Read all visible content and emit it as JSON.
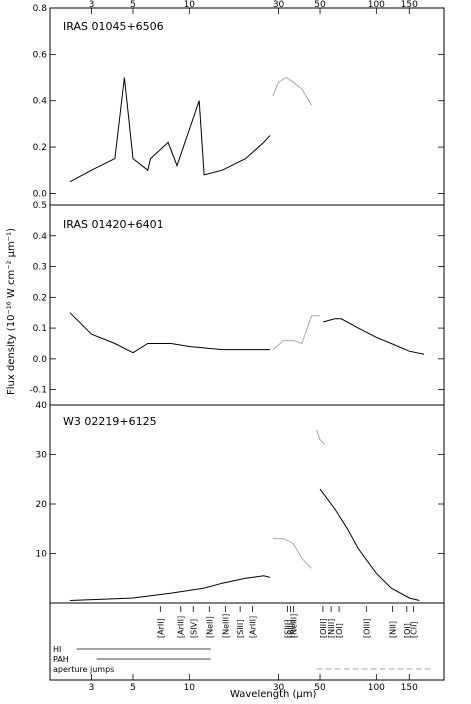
{
  "figure": {
    "xlabel": "Wavelength (μm)",
    "ylabel": "Flux density (10⁻¹⁶ W cm⁻² μm⁻¹)",
    "x_ticks": [
      "3",
      "5",
      "10",
      "30",
      "50",
      "100",
      "150"
    ],
    "x_tick_values": [
      3,
      5,
      10,
      30,
      50,
      100,
      150
    ],
    "xlim": [
      1.8,
      230
    ],
    "x_scale": "log"
  },
  "chart_data": [
    {
      "type": "line",
      "title": "IRAS 01045+6506",
      "ylim": [
        -0.05,
        0.8
      ],
      "y_ticks": [
        0.0,
        0.2,
        0.4,
        0.6,
        0.8
      ],
      "series": [
        {
          "color": "#000000",
          "x": [
            2.3,
            3.0,
            4.0,
            4.5,
            5.0,
            6.0,
            6.2,
            7.7,
            8.6,
            11.3,
            12,
            15,
            20,
            25,
            27
          ],
          "y": [
            0.05,
            0.1,
            0.15,
            0.5,
            0.15,
            0.1,
            0.15,
            0.22,
            0.12,
            0.4,
            0.08,
            0.1,
            0.15,
            0.22,
            0.25
          ]
        },
        {
          "color": "#aaaaaa",
          "x": [
            28,
            30,
            33,
            36,
            40,
            45
          ],
          "y": [
            0.42,
            0.48,
            0.5,
            0.48,
            0.45,
            0.38
          ]
        }
      ]
    },
    {
      "type": "line",
      "title": "IRAS 01420+6401",
      "ylim": [
        -0.15,
        0.5
      ],
      "y_ticks": [
        -0.1,
        0.0,
        0.1,
        0.2,
        0.3,
        0.4,
        0.5
      ],
      "series": [
        {
          "color": "#000000",
          "x": [
            2.3,
            3.0,
            4.0,
            5.0,
            6.0,
            8.0,
            10,
            15,
            20,
            27
          ],
          "y": [
            0.15,
            0.08,
            0.05,
            0.02,
            0.05,
            0.05,
            0.04,
            0.03,
            0.03,
            0.03
          ]
        },
        {
          "color": "#aaaaaa",
          "x": [
            28,
            32,
            36,
            40,
            45,
            50
          ],
          "y": [
            0.03,
            0.06,
            0.06,
            0.05,
            0.14,
            0.14
          ]
        },
        {
          "color": "#000000",
          "x": [
            52,
            60,
            65,
            80,
            100,
            120,
            150,
            180
          ],
          "y": [
            0.12,
            0.13,
            0.13,
            0.1,
            0.07,
            0.05,
            0.025,
            0.015
          ]
        }
      ]
    },
    {
      "type": "line",
      "title": "W3 02219+6125",
      "ylim": [
        0,
        40
      ],
      "y_ticks": [
        10,
        20,
        30,
        40
      ],
      "series": [
        {
          "color": "#000000",
          "x": [
            2.3,
            5,
            8,
            12,
            15,
            20,
            25,
            27
          ],
          "y": [
            0.5,
            1.0,
            2.0,
            3.0,
            4.0,
            5.0,
            5.5,
            5.2
          ]
        },
        {
          "color": "#aaaaaa",
          "x": [
            28,
            32,
            36,
            40,
            45
          ],
          "y": [
            13,
            13,
            12,
            9,
            7
          ]
        },
        {
          "color": "#aaaaaa",
          "x": [
            48,
            50,
            53
          ],
          "y": [
            35,
            33,
            32
          ]
        },
        {
          "color": "#000000",
          "x": [
            50,
            60,
            70,
            80,
            100,
            120,
            150,
            170
          ],
          "y": [
            23,
            19,
            15,
            11,
            6,
            3,
            1,
            0.5
          ]
        }
      ]
    }
  ],
  "lines_panel": {
    "ions": [
      "[ArII]",
      "[ArIII]",
      "[SIV]",
      "[NeII]",
      "[NeIII]",
      "[SIII]",
      "[ArIII]",
      "[SIII]",
      "[SiII]",
      "[NeIII]",
      "[OIII]",
      "[NIII]",
      "[OI]",
      "[OIII]",
      "[NII]",
      "[OI]",
      "[CII]"
    ],
    "ion_x": [
      7.0,
      9.0,
      10.5,
      12.8,
      15.6,
      18.7,
      21.8,
      33.5,
      34.8,
      36.0,
      51.8,
      57.3,
      63.2,
      88.4,
      121.9,
      145.5,
      157.7
    ],
    "rows": [
      "HI",
      "PAH",
      "aperture jumps"
    ]
  }
}
